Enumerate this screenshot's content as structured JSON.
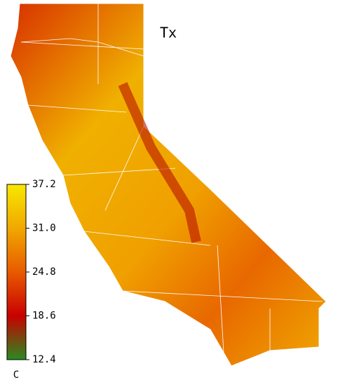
{
  "title": "Tx",
  "colorbar": {
    "label": "C",
    "range": [
      12.4,
      37.2
    ],
    "ticks": [
      37.2,
      {
        "value": 31,
        "label": "31.0"
      },
      24.8,
      18.6,
      12.4
    ]
  }
}
